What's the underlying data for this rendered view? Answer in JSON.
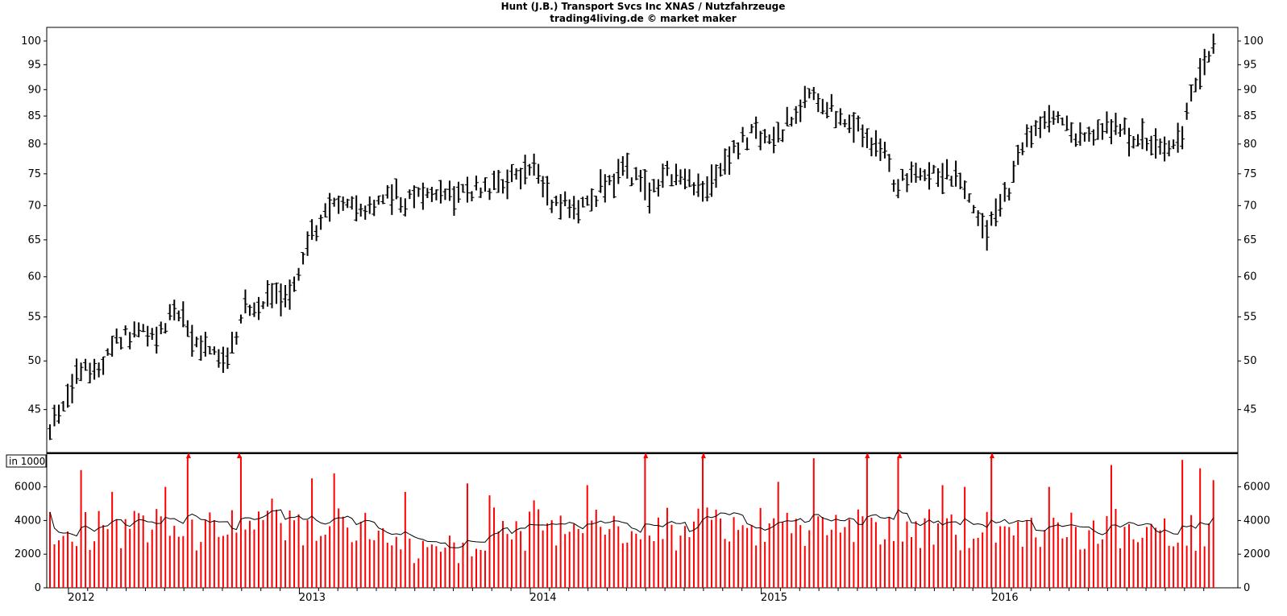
{
  "chart_data": [
    {
      "type": "ohlc",
      "title": "Hunt (J.B.) Transport Svcs Inc XNAS / Nutzfahrzeuge",
      "subtitle": "trading4living.de © market maker",
      "y_scale": "log",
      "ylim": [
        41.0,
        103.0
      ],
      "y_ticks": [
        45,
        50,
        55,
        60,
        65,
        70,
        75,
        80,
        85,
        90,
        95,
        100
      ],
      "x_ticks": [
        "2012",
        "2013",
        "2014",
        "2015",
        "2016"
      ],
      "x_tick_positions": [
        2012,
        2013,
        2014,
        2015,
        2016
      ],
      "x_range": [
        2011.92,
        2016.97
      ],
      "anchors": [
        [
          2011.92,
          43.5
        ],
        [
          2011.98,
          45.5
        ],
        [
          2012.06,
          49.5
        ],
        [
          2012.14,
          49.0
        ],
        [
          2012.22,
          52.5
        ],
        [
          2012.3,
          53.5
        ],
        [
          2012.38,
          52.0
        ],
        [
          2012.46,
          56.5
        ],
        [
          2012.54,
          52.5
        ],
        [
          2012.61,
          51.0
        ],
        [
          2012.69,
          49.5
        ],
        [
          2012.76,
          56.0
        ],
        [
          2012.84,
          57.0
        ],
        [
          2012.93,
          57.5
        ],
        [
          2013.0,
          60.0
        ],
        [
          2013.05,
          66.0
        ],
        [
          2013.12,
          68.5
        ],
        [
          2013.2,
          71.5
        ],
        [
          2013.28,
          68.0
        ],
        [
          2013.38,
          72.0
        ],
        [
          2013.46,
          70.5
        ],
        [
          2013.56,
          73.0
        ],
        [
          2013.66,
          71.5
        ],
        [
          2013.78,
          72.5
        ],
        [
          2013.9,
          73.5
        ],
        [
          2014.02,
          75.5
        ],
        [
          2014.1,
          70.5
        ],
        [
          2014.24,
          69.5
        ],
        [
          2014.32,
          73.5
        ],
        [
          2014.42,
          75.5
        ],
        [
          2014.52,
          72.0
        ],
        [
          2014.6,
          75.0
        ],
        [
          2014.7,
          73.5
        ],
        [
          2014.78,
          72.5
        ],
        [
          2014.86,
          78.0
        ],
        [
          2014.96,
          82.0
        ],
        [
          2015.05,
          80.0
        ],
        [
          2015.14,
          85.5
        ],
        [
          2015.22,
          89.0
        ],
        [
          2015.32,
          86.0
        ],
        [
          2015.42,
          82.5
        ],
        [
          2015.52,
          79.0
        ],
        [
          2015.58,
          73.0
        ],
        [
          2015.66,
          74.5
        ],
        [
          2015.76,
          75.5
        ],
        [
          2015.86,
          74.0
        ],
        [
          2015.98,
          66.0
        ],
        [
          2016.06,
          71.5
        ],
        [
          2016.14,
          80.0
        ],
        [
          2016.24,
          85.0
        ],
        [
          2016.34,
          82.0
        ],
        [
          2016.44,
          80.5
        ],
        [
          2016.5,
          84.0
        ],
        [
          2016.58,
          82.0
        ],
        [
          2016.68,
          80.0
        ],
        [
          2016.76,
          79.5
        ],
        [
          2016.82,
          80.5
        ],
        [
          2016.87,
          90.0
        ],
        [
          2016.92,
          96.0
        ],
        [
          2016.97,
          99.0
        ]
      ]
    },
    {
      "type": "bar",
      "label": "in 1000",
      "ylim": [
        0,
        7800
      ],
      "y_ticks": [
        0,
        2000,
        4000,
        6000
      ],
      "moving_average": true,
      "spikes": [
        [
          2012.06,
          7000
        ],
        [
          2012.19,
          5700
        ],
        [
          2012.42,
          6000
        ],
        [
          2012.52,
          9000
        ],
        [
          2012.74,
          9000
        ],
        [
          2012.88,
          5300
        ],
        [
          2013.05,
          6500
        ],
        [
          2013.16,
          6800
        ],
        [
          2013.45,
          5700
        ],
        [
          2013.73,
          6200
        ],
        [
          2013.82,
          5500
        ],
        [
          2014.02,
          5200
        ],
        [
          2014.25,
          6100
        ],
        [
          2014.5,
          9000
        ],
        [
          2014.75,
          9000
        ],
        [
          2015.07,
          6300
        ],
        [
          2015.23,
          7700
        ],
        [
          2015.46,
          9000
        ],
        [
          2015.6,
          9000
        ],
        [
          2015.79,
          6100
        ],
        [
          2015.89,
          6000
        ],
        [
          2016.0,
          9000
        ],
        [
          2016.24,
          6000
        ],
        [
          2016.52,
          7300
        ],
        [
          2016.82,
          7600
        ],
        [
          2016.9,
          7100
        ],
        [
          2016.96,
          6400
        ]
      ],
      "overflow_markers": [
        2012.52,
        2012.74,
        2014.5,
        2014.75,
        2015.46,
        2015.6,
        2016.0
      ]
    }
  ]
}
